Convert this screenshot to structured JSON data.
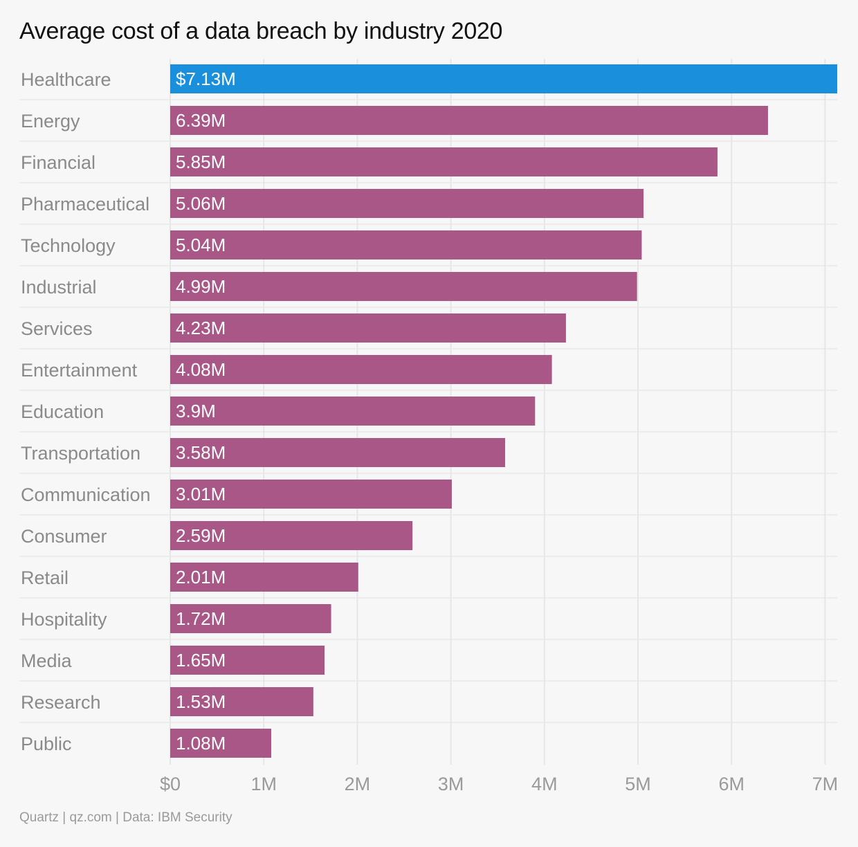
{
  "chart_data": {
    "type": "bar",
    "orientation": "horizontal",
    "title": "Average cost of a data breach by industry 2020",
    "xlabel": "",
    "ylabel": "",
    "xlim": [
      0,
      7.13
    ],
    "grid": true,
    "categories": [
      "Healthcare",
      "Energy",
      "Financial",
      "Pharmaceutical",
      "Technology",
      "Industrial",
      "Services",
      "Entertainment",
      "Education",
      "Transportation",
      "Communication",
      "Consumer",
      "Retail",
      "Hospitality",
      "Media",
      "Research",
      "Public"
    ],
    "values": [
      7.13,
      6.39,
      5.85,
      5.06,
      5.04,
      4.99,
      4.23,
      4.08,
      3.9,
      3.58,
      3.01,
      2.59,
      2.01,
      1.72,
      1.65,
      1.53,
      1.08
    ],
    "value_labels": [
      "$7.13M",
      "6.39M",
      "5.85M",
      "5.06M",
      "5.04M",
      "4.99M",
      "4.23M",
      "4.08M",
      "3.9M",
      "3.58M",
      "3.01M",
      "2.59M",
      "2.01M",
      "1.72M",
      "1.65M",
      "1.53M",
      "1.08M"
    ],
    "x_ticks": [
      0,
      1,
      2,
      3,
      4,
      5,
      6,
      7
    ],
    "x_tick_labels": [
      "$0",
      "1M",
      "2M",
      "3M",
      "4M",
      "5M",
      "6M",
      "7M"
    ],
    "colors": {
      "highlight": "#1a8fdc",
      "default": "#a85786",
      "highlight_index": 0
    }
  },
  "source": "Quartz | qz.com | Data: IBM Security"
}
